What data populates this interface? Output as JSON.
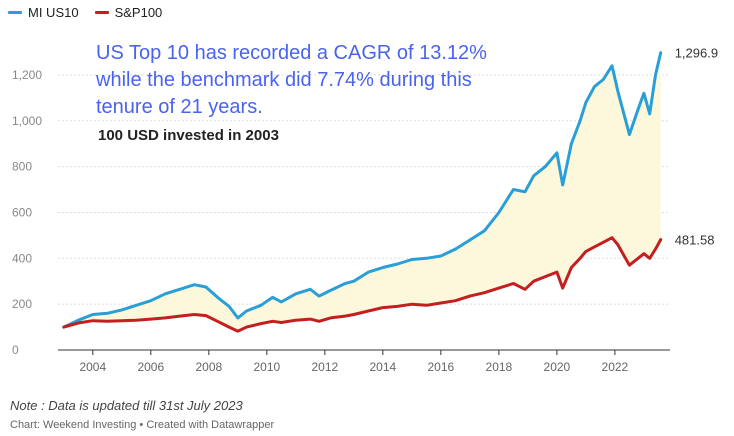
{
  "colors": {
    "mi_us10": "#2a9fd6",
    "sp100": "#c41e1e",
    "band_fill": "#fdf8dc",
    "headline": "#4a63ee"
  },
  "headline": "US Top 10 has recorded a CAGR of 13.12% while the benchmark did 7.74% during this tenure of 21 years.",
  "subtitle": "100 USD invested in 2003",
  "note": "Note : Data is updated till 31st July 2023",
  "credit": "Chart: Weekend Investing • Created with Datawrapper",
  "chart_data": {
    "type": "line",
    "xlim": [
      2002.8,
      2023.9
    ],
    "ylim": [
      0,
      1300
    ],
    "x_ticks": [
      2004,
      2006,
      2008,
      2010,
      2012,
      2014,
      2016,
      2018,
      2020,
      2022
    ],
    "x_tick_labels": [
      "2004",
      "2006",
      "2008",
      "2010",
      "2012",
      "2014",
      "2016",
      "2018",
      "2020",
      "2022"
    ],
    "y_ticks": [
      0,
      200,
      400,
      600,
      800,
      1000,
      1200
    ],
    "y_tick_labels": [
      "0",
      "200",
      "400",
      "600",
      "800",
      "1,000",
      "1,200"
    ],
    "grid": "horizontal",
    "legend": "top-left",
    "fill_between_series": true,
    "series": [
      {
        "name": "MI US10",
        "color": "#2a9fd6",
        "end_label": "1,296.9",
        "x": [
          2003.0,
          2003.5,
          2004.0,
          2004.5,
          2005.0,
          2005.5,
          2006.0,
          2006.5,
          2007.0,
          2007.5,
          2007.9,
          2008.3,
          2008.7,
          2009.0,
          2009.3,
          2009.8,
          2010.2,
          2010.5,
          2011.0,
          2011.5,
          2011.8,
          2012.2,
          2012.7,
          2013.0,
          2013.5,
          2014.0,
          2014.5,
          2015.0,
          2015.5,
          2016.0,
          2016.5,
          2017.0,
          2017.5,
          2018.0,
          2018.5,
          2018.9,
          2019.2,
          2019.6,
          2020.0,
          2020.2,
          2020.5,
          2020.8,
          2021.0,
          2021.3,
          2021.6,
          2021.9,
          2022.1,
          2022.5,
          2022.8,
          2023.0,
          2023.2,
          2023.4,
          2023.58
        ],
        "values": [
          100,
          130,
          155,
          160,
          175,
          195,
          215,
          245,
          265,
          285,
          275,
          230,
          190,
          140,
          170,
          195,
          230,
          210,
          245,
          265,
          235,
          260,
          290,
          300,
          340,
          360,
          375,
          395,
          400,
          410,
          440,
          480,
          520,
          600,
          700,
          690,
          760,
          800,
          860,
          720,
          900,
          1000,
          1080,
          1150,
          1180,
          1240,
          1130,
          940,
          1050,
          1120,
          1030,
          1200,
          1296.9
        ]
      },
      {
        "name": "S&P100",
        "color": "#c41e1e",
        "end_label": "481.58",
        "x": [
          2003.0,
          2003.5,
          2004.0,
          2004.5,
          2005.0,
          2005.5,
          2006.0,
          2006.5,
          2007.0,
          2007.5,
          2007.9,
          2008.3,
          2008.7,
          2009.0,
          2009.3,
          2009.8,
          2010.2,
          2010.5,
          2011.0,
          2011.5,
          2011.8,
          2012.2,
          2012.7,
          2013.0,
          2013.5,
          2014.0,
          2014.5,
          2015.0,
          2015.5,
          2016.0,
          2016.5,
          2017.0,
          2017.5,
          2018.0,
          2018.5,
          2018.9,
          2019.2,
          2019.6,
          2020.0,
          2020.2,
          2020.5,
          2020.8,
          2021.0,
          2021.3,
          2021.6,
          2021.9,
          2022.1,
          2022.5,
          2022.8,
          2023.0,
          2023.2,
          2023.4,
          2023.58
        ],
        "values": [
          100,
          118,
          128,
          125,
          128,
          130,
          135,
          140,
          148,
          155,
          150,
          125,
          100,
          82,
          100,
          115,
          125,
          120,
          130,
          135,
          125,
          140,
          148,
          155,
          170,
          185,
          190,
          200,
          195,
          205,
          215,
          235,
          250,
          270,
          290,
          265,
          300,
          320,
          340,
          270,
          360,
          400,
          430,
          450,
          470,
          490,
          460,
          370,
          400,
          420,
          400,
          440,
          481.58
        ]
      }
    ]
  }
}
